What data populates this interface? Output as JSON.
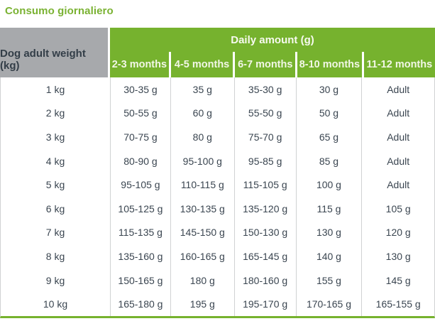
{
  "colors": {
    "accent_green": "#76b22e",
    "header_gray": "#a7a9ac",
    "header_text_dark": "#333e48",
    "body_text": "#3a4550",
    "separator_gray": "#d0d2d3"
  },
  "title": "Consumo giornaliero",
  "table": {
    "weight_header": "Dog adult weight (kg)",
    "daily_header": "Daily amount (g)",
    "months": [
      "2-3 months",
      "4-5 months",
      "6-7 months",
      "8-10 months",
      "11-12 months"
    ],
    "rows": [
      {
        "weight": "1 kg",
        "values": [
          "30-35 g",
          "35 g",
          "35-30 g",
          "30 g",
          "Adult"
        ]
      },
      {
        "weight": "2 kg",
        "values": [
          "50-55 g",
          "60 g",
          "55-50 g",
          "50 g",
          "Adult"
        ]
      },
      {
        "weight": "3 kg",
        "values": [
          "70-75 g",
          "80 g",
          "75-70 g",
          "65 g",
          "Adult"
        ]
      },
      {
        "weight": "4 kg",
        "values": [
          "80-90 g",
          "95-100 g",
          "95-85 g",
          "85 g",
          "Adult"
        ]
      },
      {
        "weight": "5 kg",
        "values": [
          "95-105 g",
          "110-115 g",
          "115-105 g",
          "100 g",
          "Adult"
        ]
      },
      {
        "weight": "6 kg",
        "values": [
          "105-125 g",
          "130-135 g",
          "135-120 g",
          "115 g",
          "105 g"
        ]
      },
      {
        "weight": "7 kg",
        "values": [
          "115-135 g",
          "145-150 g",
          "150-130 g",
          "130 g",
          "120 g"
        ]
      },
      {
        "weight": "8 kg",
        "values": [
          "135-160 g",
          "160-165 g",
          "165-145 g",
          "140 g",
          "130 g"
        ]
      },
      {
        "weight": "9 kg",
        "values": [
          "150-165 g",
          "180 g",
          "180-160 g",
          "155 g",
          "145 g"
        ]
      },
      {
        "weight": "10 kg",
        "values": [
          "165-180 g",
          "195 g",
          "195-170 g",
          "170-165 g",
          "165-155 g"
        ]
      }
    ]
  }
}
